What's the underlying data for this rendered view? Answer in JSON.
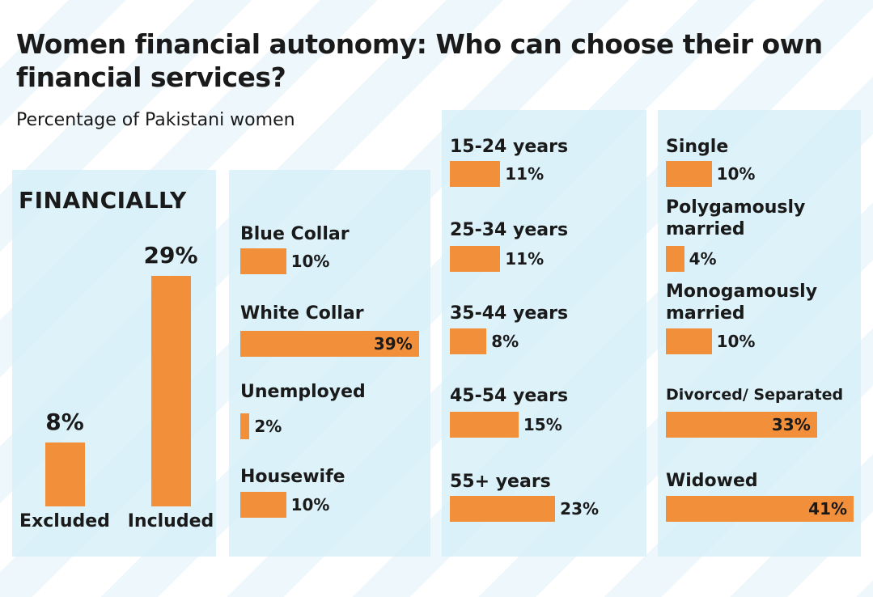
{
  "title": "Women financial autonomy: Who can choose their own financial services?",
  "subtitle": "Percentage of Pakistani women",
  "colors": {
    "bar": "#f28f3a",
    "panel": "#d6eff8",
    "text": "#1a1a1a"
  },
  "chart_data": [
    {
      "type": "bar",
      "title": "FINANCIALLY",
      "categories": [
        "Excluded",
        "Included"
      ],
      "values": [
        8,
        29
      ],
      "value_labels": [
        "8%",
        "29%"
      ],
      "unit": "%"
    },
    {
      "type": "bar",
      "orientation": "horizontal",
      "categories": [
        "Blue Collar",
        "White Collar",
        "Unemployed",
        "Housewife"
      ],
      "values": [
        10,
        39,
        2,
        10
      ],
      "value_labels": [
        "10%",
        "39%",
        "2%",
        "10%"
      ],
      "unit": "%"
    },
    {
      "type": "bar",
      "orientation": "horizontal",
      "categories": [
        "15-24 years",
        "25-34 years",
        "35-44 years",
        "45-54 years",
        "55+ years"
      ],
      "values": [
        11,
        11,
        8,
        15,
        23
      ],
      "value_labels": [
        "11%",
        "11%",
        "8%",
        "15%",
        "23%"
      ],
      "unit": "%"
    },
    {
      "type": "bar",
      "orientation": "horizontal",
      "categories": [
        [
          "Single"
        ],
        [
          "Polygamously",
          "married"
        ],
        [
          "Monogamously",
          "married"
        ],
        [
          "Divorced/ Separated"
        ],
        [
          "Widowed"
        ]
      ],
      "values": [
        10,
        4,
        10,
        33,
        41
      ],
      "value_labels": [
        "10%",
        "4%",
        "10%",
        "33%",
        "41%"
      ],
      "unit": "%"
    }
  ]
}
